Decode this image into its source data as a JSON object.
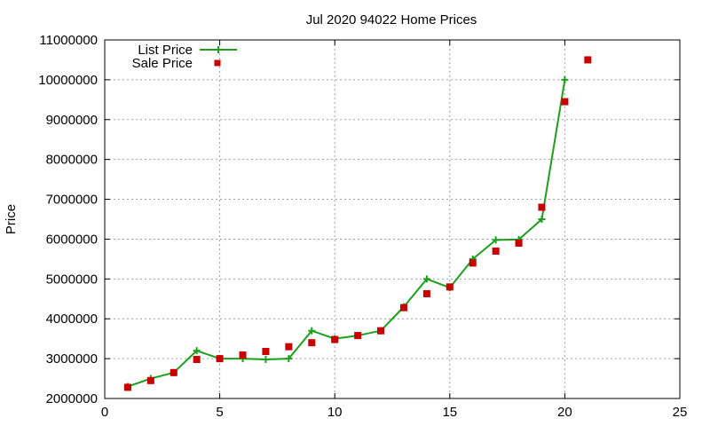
{
  "chart_data": {
    "type": "line",
    "title": "Jul 2020 94022 Home Prices",
    "xlabel": "",
    "ylabel": "Price",
    "xlim": [
      0,
      25
    ],
    "ylim": [
      2000000,
      11000000
    ],
    "x_ticks": [
      0,
      5,
      10,
      15,
      20,
      25
    ],
    "x_tick_labels": [
      "0",
      "5",
      "10",
      "15",
      "20",
      "25"
    ],
    "y_ticks": [
      2000000,
      3000000,
      4000000,
      5000000,
      6000000,
      7000000,
      8000000,
      9000000,
      10000000,
      11000000
    ],
    "y_tick_labels": [
      "2000000",
      "3000000",
      "4000000",
      "5000000",
      "6000000",
      "7000000",
      "8000000",
      "9000000",
      "10000000",
      "11000000"
    ],
    "grid": true,
    "legend_position": "top-left",
    "series": [
      {
        "name": "List Price",
        "style": "line-plus",
        "color": "#1aa01a",
        "x": [
          1,
          2,
          3,
          4,
          5,
          6,
          7,
          8,
          9,
          10,
          11,
          12,
          13,
          14,
          15,
          16,
          17,
          18,
          19,
          20
        ],
        "y": [
          2300000,
          2500000,
          2650000,
          3200000,
          3000000,
          3000000,
          2980000,
          3000000,
          3700000,
          3500000,
          3580000,
          3700000,
          4300000,
          5000000,
          4780000,
          5500000,
          5980000,
          5990000,
          6500000,
          10000000
        ]
      },
      {
        "name": "Sale Price",
        "style": "square",
        "color": "#c80000",
        "x": [
          1,
          2,
          3,
          4,
          5,
          6,
          7,
          8,
          9,
          10,
          11,
          12,
          13,
          14,
          15,
          16,
          17,
          18,
          19,
          20,
          21
        ],
        "y": [
          2280000,
          2450000,
          2650000,
          2980000,
          3000000,
          3090000,
          3180000,
          3300000,
          3400000,
          3480000,
          3580000,
          3700000,
          4280000,
          4630000,
          4800000,
          5400000,
          5700000,
          5900000,
          6800000,
          9450000,
          10500000
        ]
      }
    ]
  }
}
